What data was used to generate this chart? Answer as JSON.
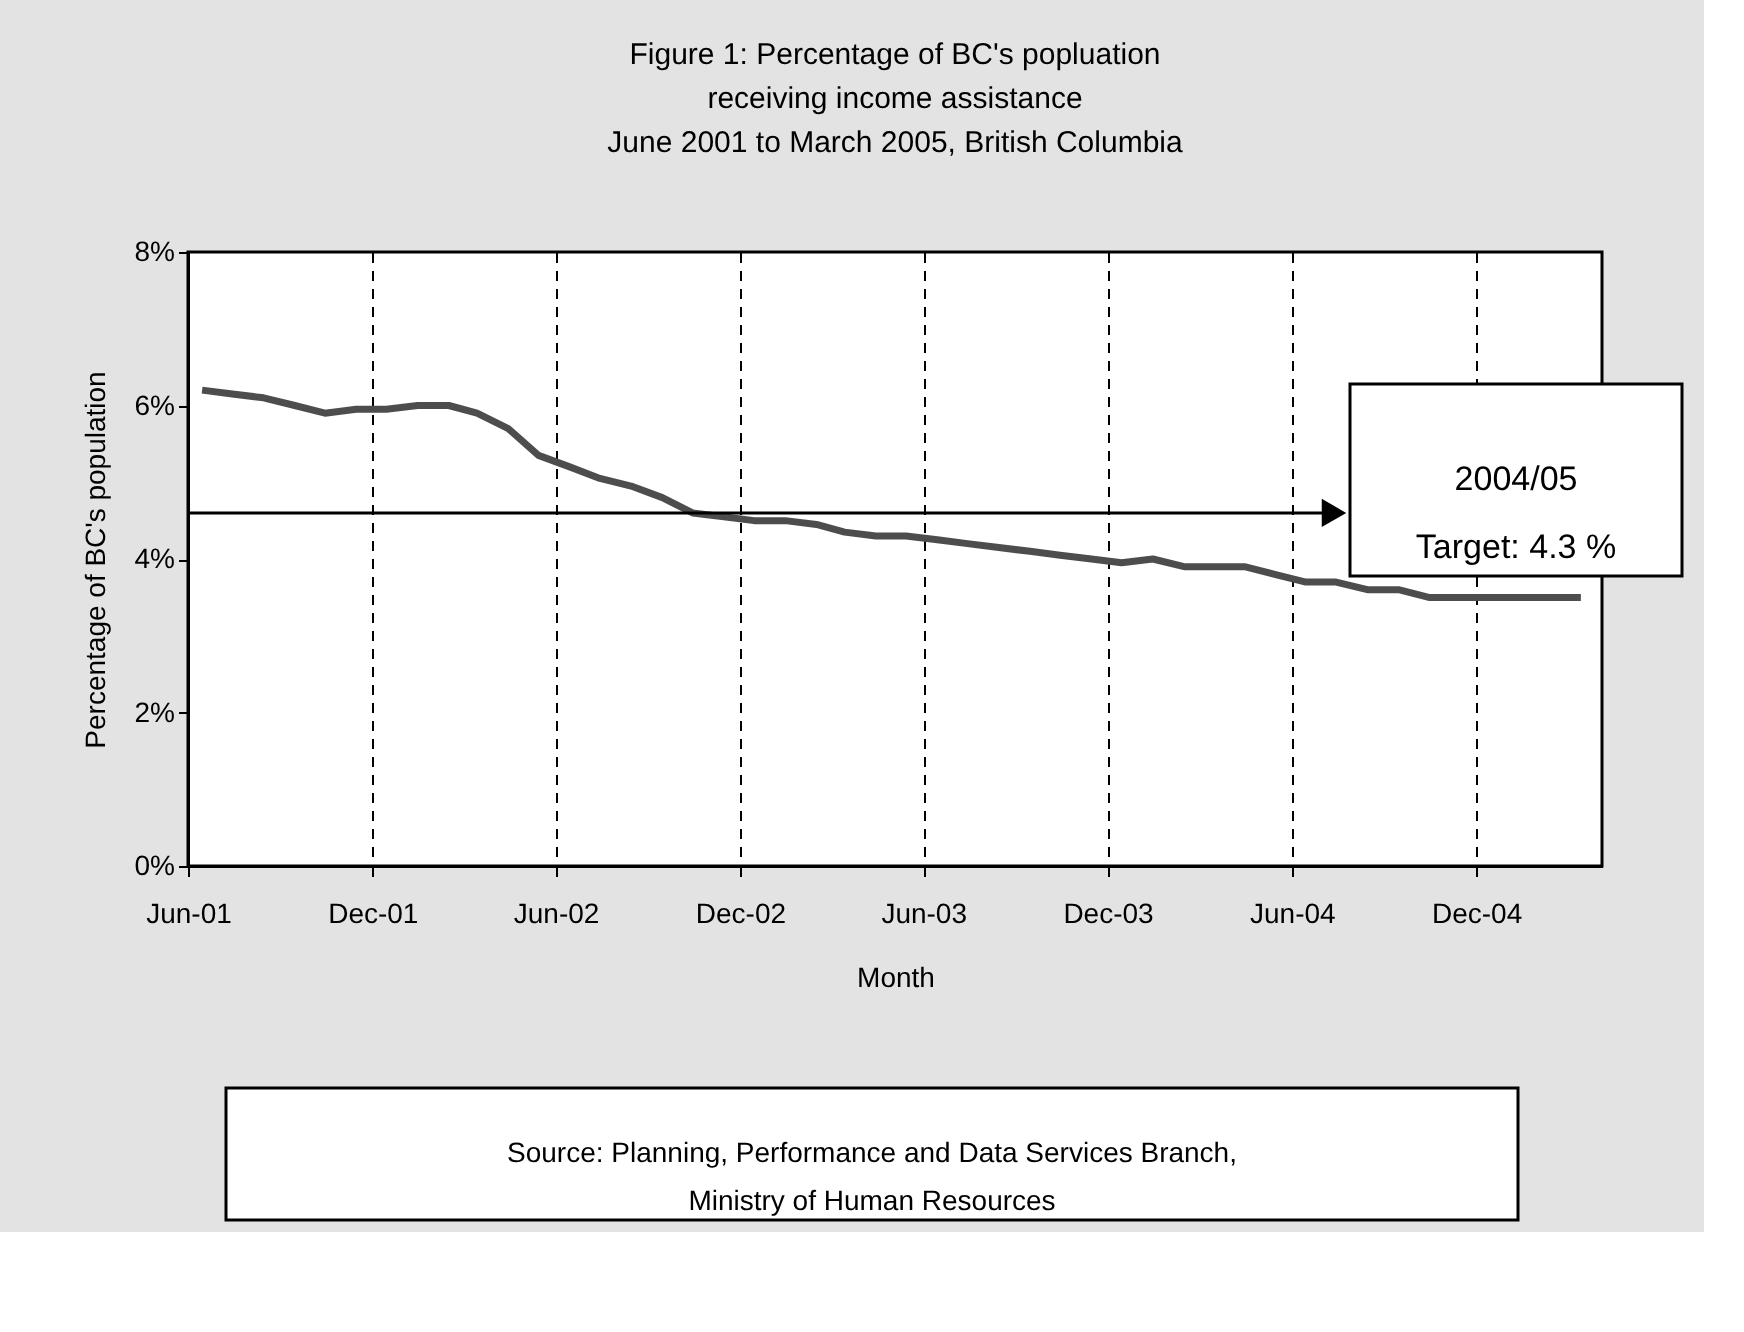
{
  "chart_data": {
    "type": "line",
    "title": "Figure 1:  Percentage of BC's popluation\nreceiving income assistance\nJune 2001 to March 2005, British Columbia",
    "xlabel": "Month",
    "ylabel": "Percentage of BC's population",
    "x": [
      "2001-06-15",
      "2001-07-15",
      "2001-08-15",
      "2001-09-15",
      "2001-10-15",
      "2001-11-15",
      "2001-12-15",
      "2002-01-15",
      "2002-02-15",
      "2002-03-15",
      "2002-04-15",
      "2002-05-15",
      "2002-06-15",
      "2002-07-15",
      "2002-08-15",
      "2002-09-15",
      "2002-10-15",
      "2002-11-15",
      "2002-12-15",
      "2003-01-15",
      "2003-02-15",
      "2003-03-15",
      "2003-04-15",
      "2003-05-15",
      "2003-06-15",
      "2003-07-15",
      "2003-08-15",
      "2003-09-15",
      "2003-10-15",
      "2003-11-15",
      "2003-12-15",
      "2004-01-15",
      "2004-02-15",
      "2004-03-15",
      "2004-04-15",
      "2004-05-15",
      "2004-06-15",
      "2004-07-15",
      "2004-08-15",
      "2004-09-15",
      "2004-10-15",
      "2004-11-15",
      "2004-12-15",
      "2005-01-15",
      "2005-02-15",
      "2005-03-15"
    ],
    "series": [
      {
        "color": "#4d4d4d",
        "values": [
          6.2,
          6.15,
          6.1,
          6.0,
          5.9,
          5.95,
          5.95,
          6.0,
          6.0,
          5.9,
          5.7,
          5.35,
          5.2,
          5.05,
          4.95,
          4.8,
          4.6,
          4.55,
          4.5,
          4.5,
          4.45,
          4.35,
          4.3,
          4.3,
          4.25,
          4.2,
          4.15,
          4.1,
          4.05,
          4.0,
          3.95,
          4.0,
          3.9,
          3.9,
          3.9,
          3.8,
          3.7,
          3.7,
          3.6,
          3.6,
          3.5,
          3.5,
          3.5,
          3.5,
          3.5,
          3.5
        ]
      }
    ],
    "xlim": [
      "2001-06-01",
      "2005-04-05"
    ],
    "xticks": [
      {
        "value": "2001-06-01",
        "label": "Jun-01"
      },
      {
        "value": "2001-12-01",
        "label": "Dec-01"
      },
      {
        "value": "2002-06-01",
        "label": "Jun-02"
      },
      {
        "value": "2002-12-01",
        "label": "Dec-02"
      },
      {
        "value": "2003-06-01",
        "label": "Jun-03"
      },
      {
        "value": "2003-12-01",
        "label": "Dec-03"
      },
      {
        "value": "2004-06-01",
        "label": "Jun-04"
      },
      {
        "value": "2004-12-01",
        "label": "Dec-04"
      }
    ],
    "ylim": [
      0,
      8
    ],
    "yticks": [
      {
        "value": 0,
        "label": "0%"
      },
      {
        "value": 2,
        "label": "2%"
      },
      {
        "value": 4,
        "label": "4%"
      },
      {
        "value": 6,
        "label": "6%"
      },
      {
        "value": 8,
        "label": "8%"
      }
    ],
    "grid": "x",
    "marker": "none",
    "line_style": "solid",
    "ref_lines": [
      {
        "axis": "y",
        "value": 4.6,
        "label": "2004/05\nTarget: 4.3 %",
        "color": "#000000"
      }
    ],
    "annotations": [
      "Source: Planning, Performance and Data Services Branch,\nMinistry of Human Resources"
    ]
  }
}
